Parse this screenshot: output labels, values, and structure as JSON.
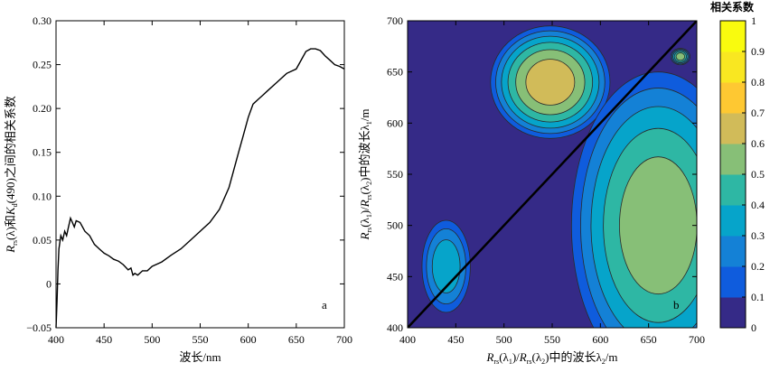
{
  "chart_data": [
    {
      "type": "line",
      "panel_label": "a",
      "xlim": [
        400,
        700
      ],
      "ylim": [
        -0.05,
        0.3
      ],
      "xticks": [
        400,
        450,
        500,
        550,
        600,
        650,
        700
      ],
      "yticks": [
        -0.05,
        0,
        0.05,
        0.1,
        0.15,
        0.2,
        0.25,
        0.3
      ],
      "xtick_labels": [
        "400",
        "450",
        "500",
        "550",
        "600",
        "650",
        "700"
      ],
      "ytick_labels": [
        "−0.05",
        "0",
        "0.05",
        "0.10",
        "0.15",
        "0.20",
        "0.25",
        "0.30"
      ],
      "xlabel": "波长/nm",
      "ylabel": {
        "p1": "R",
        "s1": "rs",
        "p2": "(λ)和",
        "p3": "K",
        "s2": "d",
        "p4": "(490)之间的相关系数"
      },
      "series": [
        {
          "x": [
            400,
            401,
            402,
            403,
            405,
            407,
            409,
            411,
            413,
            415,
            417,
            419,
            421,
            425,
            430,
            435,
            440,
            445,
            450,
            455,
            460,
            465,
            470,
            475,
            478,
            480,
            482,
            485,
            490,
            495,
            500,
            510,
            520,
            530,
            540,
            550,
            560,
            570,
            580,
            590,
            595,
            600,
            605,
            610,
            615,
            620,
            630,
            640,
            650,
            660,
            665,
            670,
            675,
            680,
            685,
            690,
            695,
            700
          ],
          "y": [
            -0.05,
            -0.02,
            0.015,
            0.04,
            0.055,
            0.05,
            0.06,
            0.055,
            0.065,
            0.075,
            0.07,
            0.065,
            0.072,
            0.07,
            0.06,
            0.055,
            0.045,
            0.04,
            0.035,
            0.032,
            0.028,
            0.026,
            0.022,
            0.016,
            0.018,
            0.01,
            0.012,
            0.01,
            0.015,
            0.015,
            0.02,
            0.025,
            0.033,
            0.04,
            0.05,
            0.06,
            0.07,
            0.085,
            0.11,
            0.15,
            0.17,
            0.19,
            0.205,
            0.21,
            0.215,
            0.22,
            0.23,
            0.24,
            0.245,
            0.265,
            0.268,
            0.268,
            0.266,
            0.26,
            0.255,
            0.25,
            0.248,
            0.245
          ]
        }
      ]
    },
    {
      "type": "heatmap",
      "panel_label": "b",
      "xlim": [
        400,
        700
      ],
      "ylim": [
        400,
        700
      ],
      "xticks": [
        400,
        450,
        500,
        550,
        600,
        650,
        700
      ],
      "yticks": [
        400,
        450,
        500,
        550,
        600,
        650,
        700
      ],
      "xtick_labels": [
        "400",
        "450",
        "500",
        "550",
        "600",
        "650",
        "700"
      ],
      "ytick_labels": [
        "400",
        "450",
        "500",
        "550",
        "600",
        "650",
        "700"
      ],
      "xlabel": {
        "p1": "R",
        "s1": "rs",
        "p2": "(λ",
        "s2": "1",
        "p3": ")/",
        "p4": "R",
        "s3": "rs",
        "p5": "(λ",
        "s4": "2",
        "p6": ")中的波长λ",
        "s5": "2",
        "p7": "/m"
      },
      "ylabel": {
        "p1": "R",
        "s1": "rs",
        "p2": "(λ",
        "s2": "1",
        "p3": ")/",
        "p4": "R",
        "s3": "rs",
        "p5": "(λ",
        "s4": "2",
        "p6": ")中的波长λ",
        "s5": "1",
        "p7": "/m"
      },
      "colorbar": {
        "title": "相关系数",
        "range": [
          0,
          1
        ],
        "ticks": [
          0,
          0.1,
          0.2,
          0.3,
          0.4,
          0.5,
          0.6,
          0.7,
          0.8,
          0.9,
          1
        ],
        "tick_labels": [
          "0",
          "0.1",
          "0.2",
          "0.3",
          "0.4",
          "0.5",
          "0.6",
          "0.7",
          "0.8",
          "0.9",
          "1"
        ],
        "colormap": "parula",
        "levels": 10
      },
      "features": [
        {
          "name": "main-peak",
          "x": 548,
          "y": 640,
          "value": 0.85,
          "sx": 30,
          "sy": 36
        },
        {
          "name": "upper-plateau",
          "x": 548,
          "y": 640,
          "value": 0.65,
          "sx": 62,
          "sy": 55
        },
        {
          "name": "lower-right-plateau",
          "x": 660,
          "y": 500,
          "value": 0.5,
          "sx": 90,
          "sy": 150
        },
        {
          "name": "small-left-peak",
          "x": 432,
          "y": 478,
          "value": 0.5,
          "sx": 12,
          "sy": 16
        },
        {
          "name": "upper-right-spot",
          "x": 683,
          "y": 665,
          "value": 0.55,
          "sx": 10,
          "sy": 8
        },
        {
          "name": "left-low-band",
          "x": 440,
          "y": 460,
          "value": 0.3,
          "sx": 25,
          "sy": 45
        }
      ]
    }
  ],
  "colors": {
    "line": "#000000",
    "contour": "#2a2a2a",
    "parula": [
      "#352a87",
      "#0f5cdd",
      "#1481d6",
      "#06a4ca",
      "#2eb7a4",
      "#87bf77",
      "#d1bb59",
      "#fec832",
      "#f9e721",
      "#f9fb0e"
    ]
  }
}
